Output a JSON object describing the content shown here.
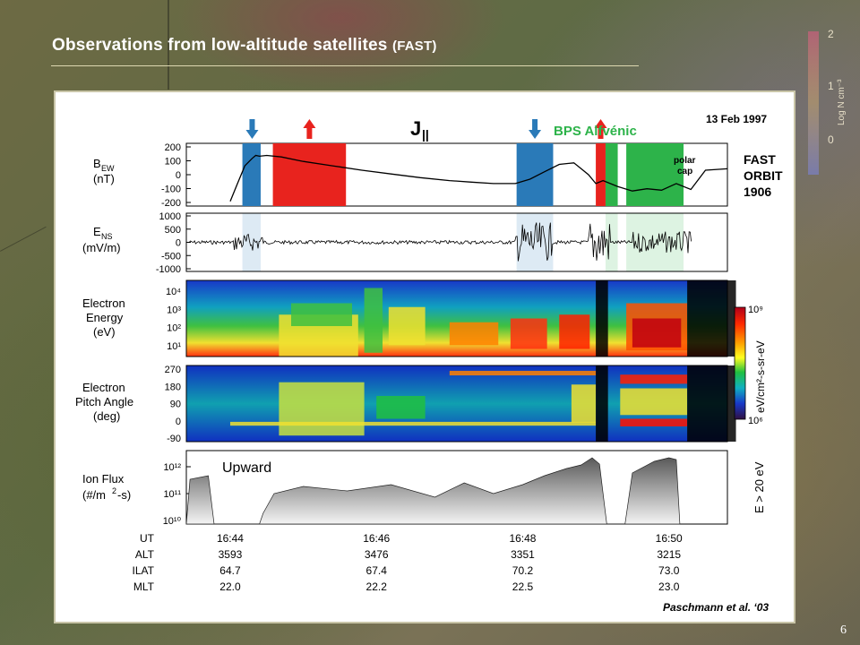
{
  "slide": {
    "title_main": "Observations from low-altitude satellites",
    "title_suffix": "(FAST)",
    "page_number": "6",
    "scale_ticks": [
      "2",
      "1",
      "0"
    ],
    "scale_label": "Log N cm⁻³"
  },
  "figure": {
    "date": "13 Feb 1997",
    "j_parallel": "J",
    "j_parallel_sub": "||",
    "bps_label": "BPS Alfvénic",
    "polar_cap_label": [
      "polar",
      "cap"
    ],
    "spacecraft": [
      "FAST",
      "ORBIT",
      "1906"
    ],
    "credit": "Paschmann et al. ‘03",
    "upward_label": "Upward",
    "colorbar_label": "eV/cm²-s-sr-eV",
    "colorbar_ticks": [
      "10⁹",
      "10⁶"
    ],
    "ion_energy_label": "E > 20 eV",
    "arrows": [
      {
        "dir": "down",
        "color": "#2a7ab8"
      },
      {
        "dir": "up",
        "color": "#e8231e"
      },
      {
        "dir": "down",
        "color": "#2a7ab8"
      },
      {
        "dir": "up",
        "color": "#e8231e"
      }
    ],
    "panel_labels": {
      "bew": [
        "B",
        "EW",
        "(nT)"
      ],
      "ens": [
        "E",
        "NS",
        "(mV/m)"
      ],
      "energy": [
        "Electron",
        "Energy",
        "(eV)"
      ],
      "pitch": [
        "Electron",
        "Pitch Angle",
        "(deg)"
      ],
      "ion": [
        "Ion Flux",
        "(#/m",
        "2",
        "-s)"
      ]
    },
    "bew_ticks": [
      "200",
      "100",
      "0",
      "-100",
      "-200"
    ],
    "ens_ticks": [
      "1000",
      "500",
      "0",
      "-500",
      "-1000"
    ],
    "energy_ticks": [
      "10⁴",
      "10³",
      "10²",
      "10¹"
    ],
    "pitch_ticks": [
      "270",
      "180",
      "90",
      "0",
      "-90"
    ],
    "ion_ticks": [
      "10¹²",
      "10¹¹",
      "10¹⁰"
    ],
    "orbit_table": {
      "row_labels": [
        "UT",
        "ALT",
        "ILAT",
        "MLT"
      ],
      "columns": [
        [
          "16:44",
          "3593",
          "64.7",
          "22.0"
        ],
        [
          "16:46",
          "3476",
          "67.4",
          "22.2"
        ],
        [
          "16:48",
          "3351",
          "70.2",
          "22.5"
        ],
        [
          "16:50",
          "3215",
          "73.0",
          "23.0"
        ]
      ]
    }
  },
  "chart_data": {
    "type": "line",
    "title": "",
    "x_ticks": [
      "16:44",
      "16:46",
      "16:48",
      "16:50"
    ],
    "current_regions": [
      {
        "kind": "downward",
        "color": "#2a7ab8",
        "start": "16:44:10",
        "end": "16:44:25"
      },
      {
        "kind": "upward",
        "color": "#e8231e",
        "start": "16:44:35",
        "end": "16:45:35"
      },
      {
        "kind": "downward",
        "color": "#2a7ab8",
        "start": "16:47:55",
        "end": "16:48:25"
      },
      {
        "kind": "upward",
        "color": "#e8231e",
        "start": "16:49:00",
        "end": "16:49:08"
      },
      {
        "kind": "bps_alfvenic",
        "color": "#2db34a",
        "start": "16:49:08",
        "end": "16:49:18"
      },
      {
        "kind": "bps_alfvenic",
        "color": "#2db34a",
        "start": "16:49:25",
        "end": "16:50:12"
      }
    ],
    "series": [
      {
        "name": "",
        "ylabel": "B_EW (nT)",
        "ylim": [
          -200,
          200
        ],
        "x_min": [
          0,
          0.1,
          0.2,
          0.3,
          0.35,
          0.4,
          0.5,
          0.7,
          1.0,
          1.4,
          1.8,
          2.2,
          2.6,
          3.0,
          3.3,
          3.6,
          3.9,
          4.1,
          4.3,
          4.5,
          4.7,
          4.8,
          4.9,
          5.0,
          5.1,
          5.3,
          5.5,
          5.7,
          5.9,
          6.1,
          6.3,
          6.5,
          6.8
        ],
        "values": [
          -180,
          -60,
          60,
          110,
          130,
          125,
          130,
          120,
          90,
          60,
          30,
          5,
          -20,
          -40,
          -50,
          -60,
          -60,
          -30,
          20,
          70,
          80,
          40,
          0,
          -60,
          -40,
          -80,
          -110,
          -95,
          -105,
          -60,
          -100,
          30,
          40
        ]
      },
      {
        "name": "",
        "ylabel": "E_NS (mV/m)",
        "ylim": [
          -1000,
          1000
        ]
      },
      {
        "name": "",
        "ylabel": "Electron Energy (eV)",
        "ylim": [
          10,
          10000
        ],
        "scale": "log"
      },
      {
        "name": "",
        "ylabel": "Electron Pitch Angle (deg)",
        "ylim": [
          -90,
          270
        ]
      },
      {
        "name": "",
        "ylabel": "Ion Flux (#/m²-s)",
        "ylim": [
          10000000000.0,
          1000000000000.0
        ],
        "scale": "log"
      }
    ]
  }
}
